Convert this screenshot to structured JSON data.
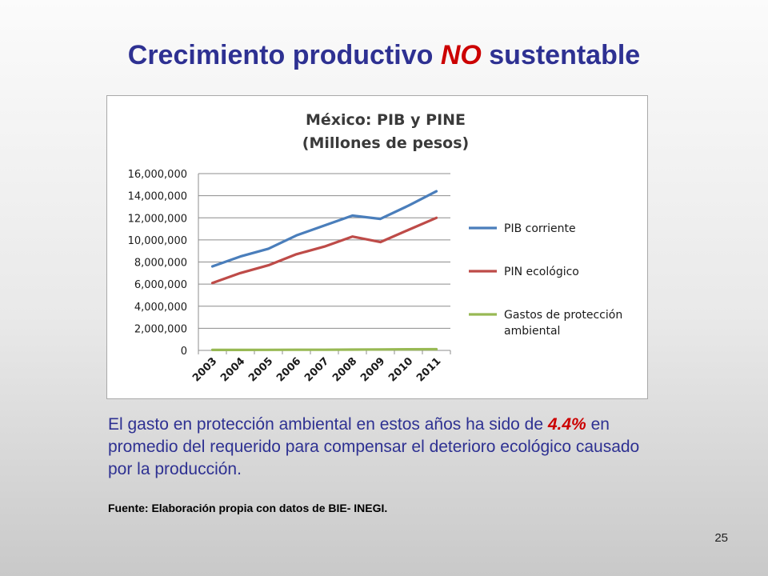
{
  "slide": {
    "title_pre": "Crecimiento productivo ",
    "title_emph": "NO",
    "title_post": " sustentable",
    "body_1": "El gasto en protección ambiental en estos años ha sido de ",
    "body_pct": "4.4%",
    "body_2": " en promedio del requerido para compensar el deterioro ecológico causado por la producción.",
    "source": "Fuente: Elaboración propia con datos de BIE- INEGI.",
    "page_number": "25"
  },
  "chart_data": {
    "type": "line",
    "title": "México: PIB y PINE",
    "subtitle": "(Millones de pesos)",
    "xlabel": "",
    "ylabel": "",
    "ylim": [
      0,
      16000000
    ],
    "y_ticks": [
      0,
      2000000,
      4000000,
      6000000,
      8000000,
      10000000,
      12000000,
      14000000,
      16000000
    ],
    "y_tick_labels": [
      "0",
      "2,000,000",
      "4,000,000",
      "6,000,000",
      "8,000,000",
      "10,000,000",
      "12,000,000",
      "14,000,000",
      "16,000,000"
    ],
    "categories": [
      "2003",
      "2004",
      "2005",
      "2006",
      "2007",
      "2008",
      "2009",
      "2010",
      "2011"
    ],
    "grid": true,
    "legend_position": "right",
    "series": [
      {
        "name": "PIB corriente",
        "color": "#4a7ebb",
        "values": [
          7600000,
          8500000,
          9200000,
          10400000,
          11300000,
          12200000,
          11900000,
          13100000,
          14400000
        ]
      },
      {
        "name": "PIN ecológico",
        "color": "#be4b48",
        "values": [
          6100000,
          7000000,
          7700000,
          8700000,
          9400000,
          10300000,
          9800000,
          10900000,
          12000000
        ]
      },
      {
        "name": "Gastos de protección ambiental",
        "color": "#98b954",
        "values": [
          40000,
          45000,
          50000,
          55000,
          60000,
          70000,
          90000,
          100000,
          110000
        ]
      }
    ]
  }
}
